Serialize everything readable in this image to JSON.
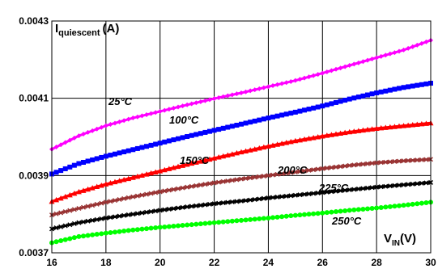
{
  "chart_data": {
    "type": "line",
    "x_axis": {
      "min": 16,
      "max": 30,
      "ticks": [
        "16",
        "18",
        "20",
        "22",
        "24",
        "26",
        "28",
        "30"
      ],
      "label_main": "V",
      "label_sub": "IN",
      "label_unit": "(V)"
    },
    "y_axis": {
      "min": 0.0037,
      "max": 0.0043,
      "ticks": [
        "0.0037",
        "0.0039",
        "0.0041",
        "0.0043"
      ],
      "label_main": "I",
      "label_sub": "quiescent",
      "label_unit": "(A)"
    },
    "grid": true,
    "series": [
      {
        "name": "25°C",
        "color": "#ff00ff",
        "marker": "diamond",
        "points": [
          [
            16,
            0.003968
          ],
          [
            17,
            0.004003
          ],
          [
            18,
            0.004029
          ],
          [
            19,
            0.004049
          ],
          [
            20,
            0.004066
          ],
          [
            21,
            0.004083
          ],
          [
            22,
            0.004099
          ],
          [
            23,
            0.004114
          ],
          [
            24,
            0.00413
          ],
          [
            25,
            0.004146
          ],
          [
            26,
            0.004165
          ],
          [
            27,
            0.004185
          ],
          [
            28,
            0.004205
          ],
          [
            29,
            0.004225
          ],
          [
            30,
            0.00425
          ]
        ]
      },
      {
        "name": "100°C",
        "color": "#0000ff",
        "marker": "square",
        "points": [
          [
            16,
            0.003904
          ],
          [
            17,
            0.003931
          ],
          [
            18,
            0.00395
          ],
          [
            19,
            0.003967
          ],
          [
            20,
            0.003984
          ],
          [
            21,
            0.004001
          ],
          [
            22,
            0.004017
          ],
          [
            23,
            0.004033
          ],
          [
            24,
            0.004049
          ],
          [
            25,
            0.004064
          ],
          [
            26,
            0.00408
          ],
          [
            27,
            0.004098
          ],
          [
            28,
            0.004114
          ],
          [
            29,
            0.004128
          ],
          [
            30,
            0.004139
          ]
        ]
      },
      {
        "name": "150°C",
        "color": "#ff0000",
        "marker": "triangle",
        "points": [
          [
            16,
            0.003833
          ],
          [
            17,
            0.003858
          ],
          [
            18,
            0.003878
          ],
          [
            19,
            0.003895
          ],
          [
            20,
            0.003912
          ],
          [
            21,
            0.003929
          ],
          [
            22,
            0.003945
          ],
          [
            23,
            0.003961
          ],
          [
            24,
            0.003976
          ],
          [
            25,
            0.00399
          ],
          [
            26,
            0.004002
          ],
          [
            27,
            0.004013
          ],
          [
            28,
            0.004022
          ],
          [
            29,
            0.004029
          ],
          [
            30,
            0.004036
          ]
        ]
      },
      {
        "name": "200°C",
        "color": "#993333",
        "marker": "x",
        "points": [
          [
            16,
            0.003798
          ],
          [
            17,
            0.003815
          ],
          [
            18,
            0.003831
          ],
          [
            19,
            0.003845
          ],
          [
            20,
            0.003858
          ],
          [
            21,
            0.00387
          ],
          [
            22,
            0.003881
          ],
          [
            23,
            0.003891
          ],
          [
            24,
            0.0039
          ],
          [
            25,
            0.003909
          ],
          [
            26,
            0.003918
          ],
          [
            27,
            0.003926
          ],
          [
            28,
            0.003933
          ],
          [
            29,
            0.003938
          ],
          [
            30,
            0.003942
          ]
        ]
      },
      {
        "name": "225°C",
        "color": "#000000",
        "marker": "x",
        "points": [
          [
            16,
            0.003762
          ],
          [
            17,
            0.003778
          ],
          [
            18,
            0.00379
          ],
          [
            19,
            0.0038
          ],
          [
            20,
            0.00381
          ],
          [
            21,
            0.003819
          ],
          [
            22,
            0.003827
          ],
          [
            23,
            0.003834
          ],
          [
            24,
            0.003842
          ],
          [
            25,
            0.003849
          ],
          [
            26,
            0.003856
          ],
          [
            27,
            0.003863
          ],
          [
            28,
            0.00387
          ],
          [
            29,
            0.003876
          ],
          [
            30,
            0.003882
          ]
        ]
      },
      {
        "name": "250°C",
        "color": "#00ff00",
        "marker": "circle",
        "points": [
          [
            16,
            0.003726
          ],
          [
            17,
            0.003742
          ],
          [
            18,
            0.003751
          ],
          [
            19,
            0.003759
          ],
          [
            20,
            0.003766
          ],
          [
            21,
            0.003772
          ],
          [
            22,
            0.003778
          ],
          [
            23,
            0.003784
          ],
          [
            24,
            0.00379
          ],
          [
            25,
            0.003797
          ],
          [
            26,
            0.003803
          ],
          [
            27,
            0.00381
          ],
          [
            28,
            0.003816
          ],
          [
            29,
            0.003823
          ],
          [
            30,
            0.003831
          ]
        ]
      }
    ]
  }
}
